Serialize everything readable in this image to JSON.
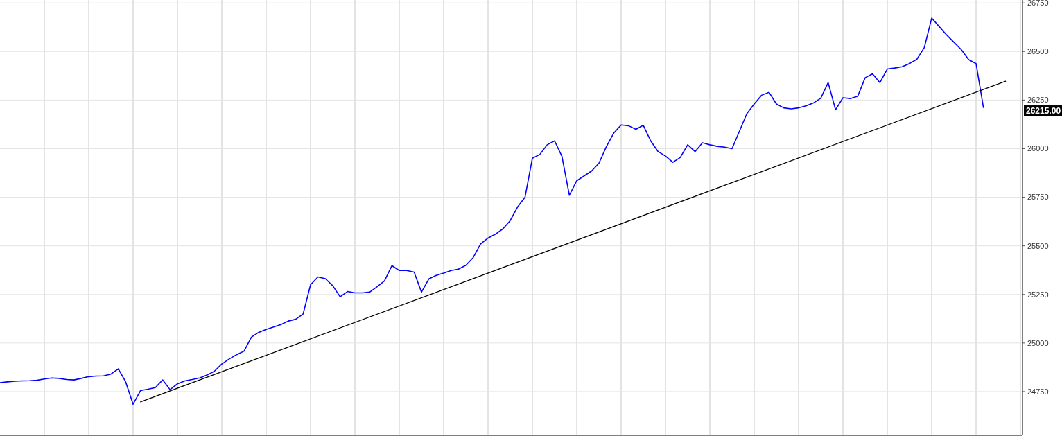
{
  "chart_data": {
    "type": "line",
    "grid": true,
    "marker": "none",
    "line_style": "solid",
    "categories": [
      null,
      null,
      null,
      null,
      null,
      null,
      null,
      null,
      null,
      null,
      null,
      null,
      null,
      null,
      null,
      null,
      null,
      null,
      null,
      null,
      null,
      null,
      null,
      null,
      null,
      null,
      null,
      null,
      null,
      null,
      null,
      null,
      null,
      null,
      null,
      null,
      null,
      null,
      null,
      null,
      null,
      null,
      null,
      null,
      null,
      null,
      null,
      null,
      null,
      null,
      null,
      null,
      null,
      null,
      null,
      null,
      null,
      null,
      null,
      null,
      null,
      null,
      null,
      null,
      null,
      null,
      null,
      null,
      null,
      null,
      null,
      null,
      null,
      null,
      null,
      null,
      null,
      null,
      null,
      null,
      null,
      null,
      null,
      null,
      null,
      null,
      null,
      null,
      null,
      null,
      null,
      null,
      null,
      null,
      null,
      null,
      null,
      null,
      null,
      null,
      null,
      null,
      null,
      null,
      null,
      null,
      null,
      null,
      null,
      null,
      null,
      null,
      null,
      null,
      null,
      null,
      null,
      null,
      null,
      null,
      null,
      null,
      null,
      null,
      null,
      null,
      null,
      null,
      null,
      null,
      null,
      null,
      null,
      null,
      null,
      null,
      null
    ],
    "ylim": [
      24525,
      26765
    ],
    "yticks": [
      24750,
      25000,
      25250,
      25500,
      25750,
      26000,
      26250,
      26500,
      26750
    ],
    "annotations": [
      "26215.00"
    ],
    "series": [
      {
        "color": "#0000ff",
        "values": [
          24796,
          24800,
          24803,
          24805,
          24806,
          24808,
          24815,
          24820,
          24818,
          24812,
          24810,
          24818,
          24827,
          24830,
          24831,
          24840,
          24867,
          24800,
          24685,
          24755,
          24762,
          24770,
          24810,
          24760,
          24790,
          24805,
          24812,
          24820,
          24835,
          24855,
          24892,
          24918,
          24940,
          24958,
          25030,
          25055,
          25070,
          25082,
          25095,
          25113,
          25122,
          25150,
          25300,
          25340,
          25331,
          25295,
          25238,
          25265,
          25258,
          25258,
          25262,
          25290,
          25320,
          25398,
          25373,
          25373,
          25365,
          25262,
          25330,
          25348,
          25360,
          25373,
          25380,
          25400,
          25440,
          25510,
          25540,
          25560,
          25587,
          25630,
          25700,
          25750,
          25951,
          25970,
          26020,
          26040,
          25960,
          25760,
          25835,
          25860,
          25885,
          25925,
          26010,
          26080,
          26122,
          26118,
          26100,
          26120,
          26040,
          25985,
          25962,
          25930,
          25955,
          26020,
          25985,
          26030,
          26020,
          26012,
          26008,
          26000,
          26090,
          26180,
          26230,
          26275,
          26290,
          26230,
          26210,
          26205,
          26210,
          26220,
          26235,
          26260,
          26340,
          26200,
          26262,
          26258,
          26270,
          26365,
          26385,
          26340,
          26410,
          26415,
          26422,
          26438,
          26460,
          26520,
          26672,
          26629,
          26586,
          26548,
          26510,
          26458,
          26438,
          26212,
          null,
          null,
          null
        ]
      },
      {
        "color": "#000000",
        "values": [
          null,
          null,
          null,
          null,
          null,
          null,
          null,
          null,
          null,
          null,
          null,
          null,
          null,
          null,
          null,
          null,
          null,
          null,
          null,
          24697,
          null,
          null,
          null,
          null,
          null,
          null,
          null,
          null,
          null,
          null,
          null,
          null,
          null,
          null,
          null,
          null,
          null,
          null,
          null,
          null,
          null,
          null,
          null,
          null,
          null,
          null,
          null,
          null,
          null,
          null,
          null,
          null,
          null,
          null,
          null,
          null,
          null,
          null,
          null,
          null,
          null,
          null,
          null,
          null,
          null,
          null,
          null,
          null,
          null,
          null,
          null,
          null,
          null,
          null,
          null,
          null,
          null,
          null,
          null,
          null,
          null,
          null,
          null,
          null,
          null,
          null,
          null,
          null,
          null,
          null,
          null,
          null,
          null,
          null,
          null,
          null,
          null,
          null,
          null,
          null,
          null,
          null,
          null,
          null,
          null,
          null,
          null,
          null,
          null,
          null,
          null,
          null,
          null,
          null,
          null,
          null,
          null,
          null,
          null,
          null,
          null,
          null,
          null,
          null,
          null,
          null,
          null,
          null,
          null,
          null,
          null,
          null,
          null,
          null,
          null,
          null,
          26347
        ]
      }
    ]
  }
}
